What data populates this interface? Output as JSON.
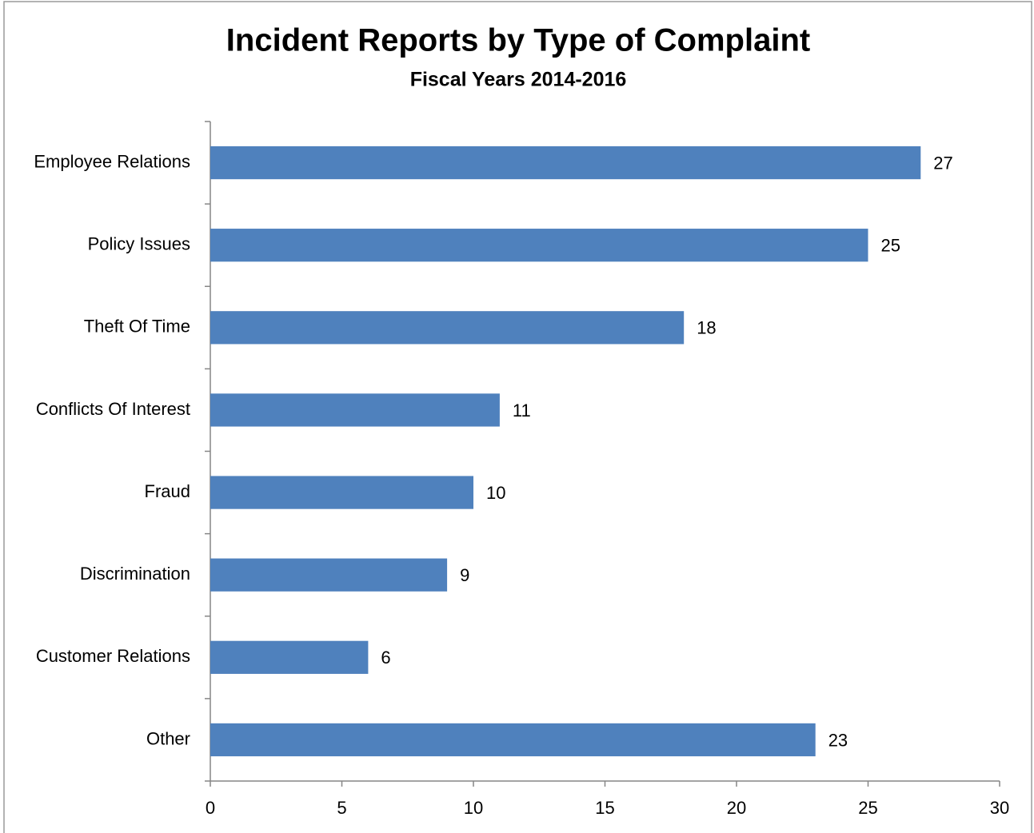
{
  "chart_data": {
    "type": "bar",
    "orientation": "horizontal",
    "title": "Incident Reports by Type of Complaint",
    "subtitle": "Fiscal Years 2014-2016",
    "categories": [
      "Employee Relations",
      "Policy Issues",
      "Theft Of Time",
      "Conflicts Of Interest",
      "Fraud",
      "Discrimination",
      "Customer Relations",
      "Other"
    ],
    "values": [
      27,
      25,
      18,
      11,
      10,
      9,
      6,
      23
    ],
    "color": "#4f81bd",
    "xlim": [
      0,
      30
    ],
    "xticks": [
      0,
      5,
      10,
      15,
      20,
      25,
      30
    ],
    "grid": false,
    "data_labels": true
  }
}
